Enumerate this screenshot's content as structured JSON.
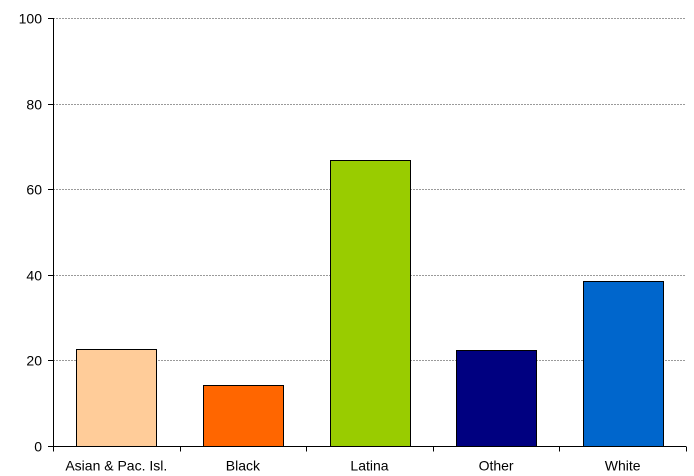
{
  "chart_data": {
    "type": "bar",
    "title": "",
    "xlabel": "",
    "ylabel": "",
    "categories": [
      "Asian & Pac. Isl.",
      "Black",
      "Latina",
      "Other",
      "White"
    ],
    "values": [
      22.6,
      14.3,
      66.9,
      22.5,
      38.6
    ],
    "bar_colors": [
      "#FFCC99",
      "#FF6600",
      "#99CC00",
      "#000080",
      "#0066CC"
    ],
    "ylim": [
      0,
      100
    ],
    "yticks": [
      0,
      20,
      40,
      60,
      80,
      100
    ],
    "grid": true,
    "legend": "none"
  }
}
